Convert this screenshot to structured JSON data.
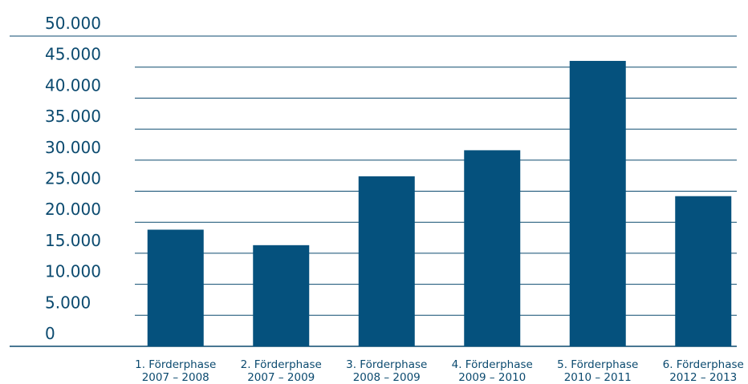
{
  "colors": {
    "bar": "#05517d",
    "grid": "#0b4a6f",
    "text": "#0b4a6f"
  },
  "chart_data": {
    "type": "bar",
    "title": "",
    "xlabel": "",
    "ylabel": "",
    "ylim": [
      0,
      50000
    ],
    "yticks": [
      0,
      5000,
      10000,
      15000,
      20000,
      25000,
      30000,
      35000,
      40000,
      45000,
      50000
    ],
    "ytick_labels": [
      "0",
      "5.000",
      "10.000",
      "15.000",
      "20.000",
      "25.000",
      "30.000",
      "35.000",
      "40.000",
      "45.000",
      "50.000"
    ],
    "grid": true,
    "legend": "none",
    "categories": [
      [
        "1. Förderphase",
        "2007 – 2008"
      ],
      [
        "2. Förderphase",
        "2007 – 2009"
      ],
      [
        "3. Förderphase",
        "2008 – 2009"
      ],
      [
        "4. Förderphase",
        "2009 – 2010"
      ],
      [
        "5. Förderphase",
        "2010 – 2011"
      ],
      [
        "6. Förderphase",
        "2012 – 2013"
      ]
    ],
    "values": [
      18800,
      16300,
      27400,
      31600,
      46000,
      24200
    ]
  }
}
